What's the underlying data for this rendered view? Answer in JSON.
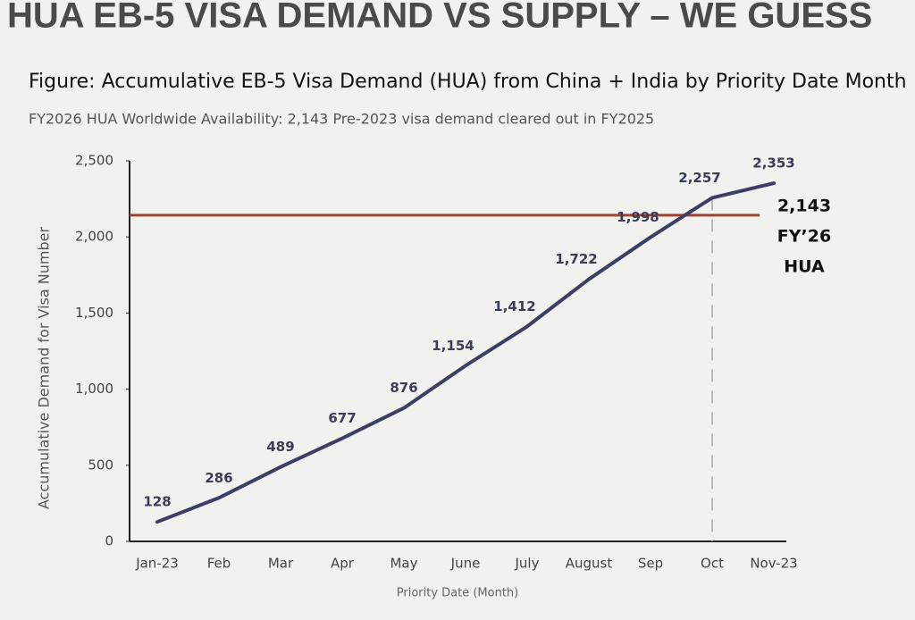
{
  "chart_data": {
    "type": "line",
    "header": "HUA EB-5 VISA DEMAND VS SUPPLY – WE GUESS",
    "title": "Figure: Accumulative EB-5 Visa Demand (HUA) from China + India by Priority Date Month",
    "subtitle": "FY2026 HUA Worldwide Availability: 2,143 Pre-2023 visa demand cleared out in FY2025",
    "y_label": "Accumulative Demand for Visa Number",
    "x_label": "Priority Date (Month)",
    "categories": [
      "Jan-23",
      "Feb",
      "Mar",
      "Apr",
      "May",
      "June",
      "July",
      "August",
      "Sep",
      "Oct",
      "Nov-23"
    ],
    "values": [
      128,
      286,
      489,
      677,
      876,
      1154,
      1412,
      1722,
      1998,
      2257,
      2353
    ],
    "value_labels": [
      "128",
      "286",
      "489",
      "677",
      "876",
      "1,154",
      "1,412",
      "1,722",
      "1,998",
      "2,257",
      "2,353"
    ],
    "color": "#3c3e66",
    "ylim": [
      0,
      2500
    ],
    "yticks": [
      0,
      500,
      {
        "value": 1000,
        "label": "1,000"
      },
      {
        "value": 1500,
        "label": "1,500"
      },
      {
        "value": 2000,
        "label": "2,000"
      },
      {
        "value": 2500,
        "label": "2,500"
      }
    ],
    "reference_line": {
      "value": 2143,
      "label": "2,143",
      "color": "#a3402c",
      "annotation": [
        "FY’26",
        "HUA"
      ]
    }
  }
}
